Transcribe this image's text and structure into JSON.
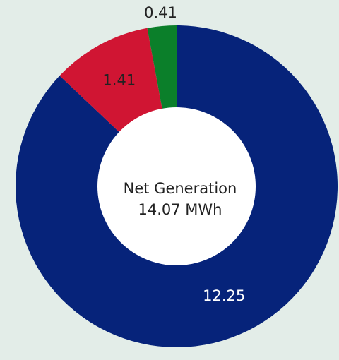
{
  "chart_data": {
    "type": "donut",
    "center_label": [
      "Net Generation",
      "14.07 MWh"
    ],
    "categories": [
      null,
      null,
      null
    ],
    "values": [
      12.25,
      1.41,
      0.41
    ],
    "colors": [
      "#06237a",
      "#d01533",
      "#0b7f2a"
    ],
    "label_colors": [
      "#ffffff",
      "#222222",
      "#222222"
    ],
    "background": "#e3ede8"
  }
}
